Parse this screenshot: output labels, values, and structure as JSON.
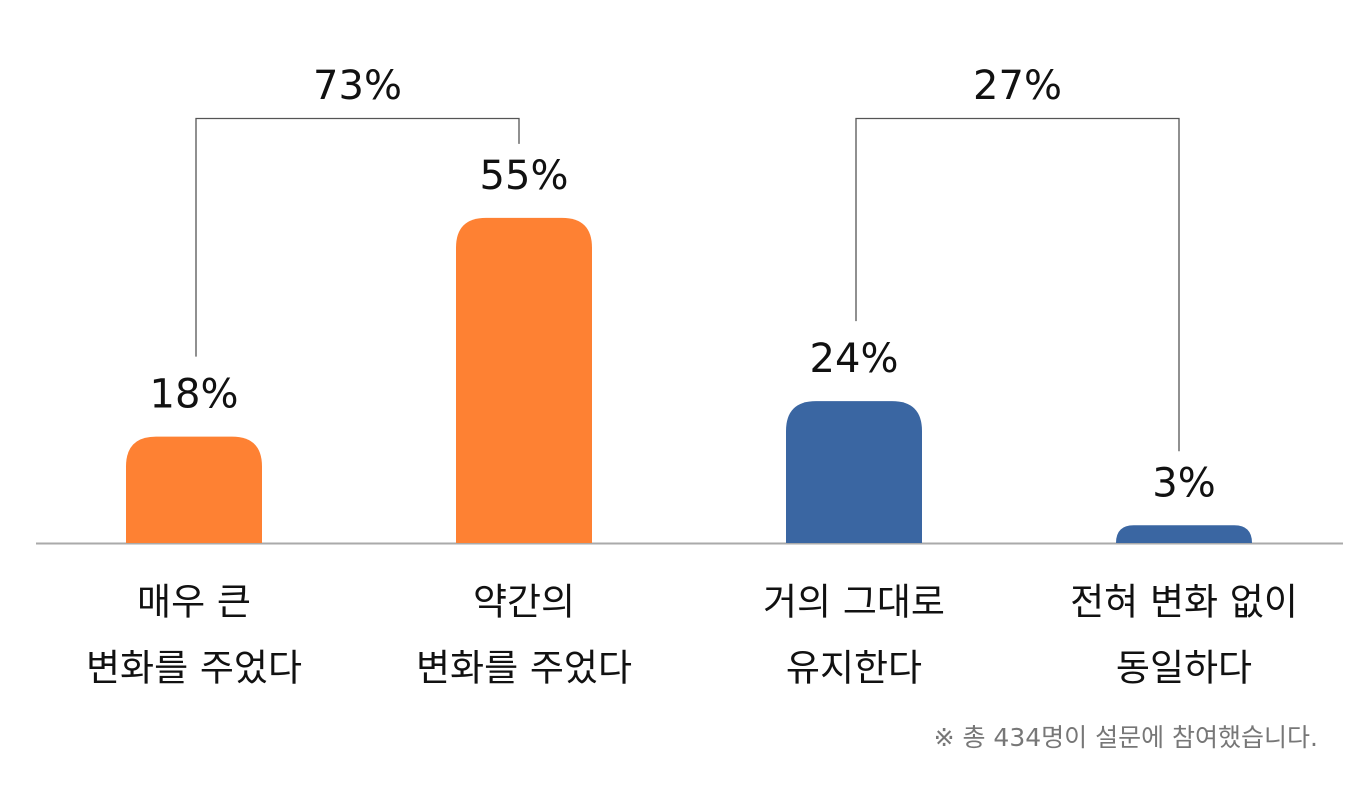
{
  "chart_data": {
    "type": "bar",
    "categories": [
      [
        "매우 큰",
        "변화를 주었다"
      ],
      [
        "약간의",
        "변화를 주었다"
      ],
      [
        "거의 그대로",
        "유지한다"
      ],
      [
        "전혀 변화 없이",
        "동일하다"
      ]
    ],
    "values": [
      18,
      55,
      24,
      3
    ],
    "value_labels": [
      "18%",
      "55%",
      "24%",
      "3%"
    ],
    "colors": [
      "#fe8133",
      "#fe8133",
      "#3a66a2",
      "#3a66a2"
    ],
    "ylim": [
      0,
      90
    ],
    "groups": [
      {
        "value": 73,
        "label": "73%",
        "from": 0,
        "to": 1
      },
      {
        "value": 27,
        "label": "27%",
        "from": 2,
        "to": 3
      }
    ],
    "note": "※ 총 434명이 설문에 참여했습니다."
  }
}
